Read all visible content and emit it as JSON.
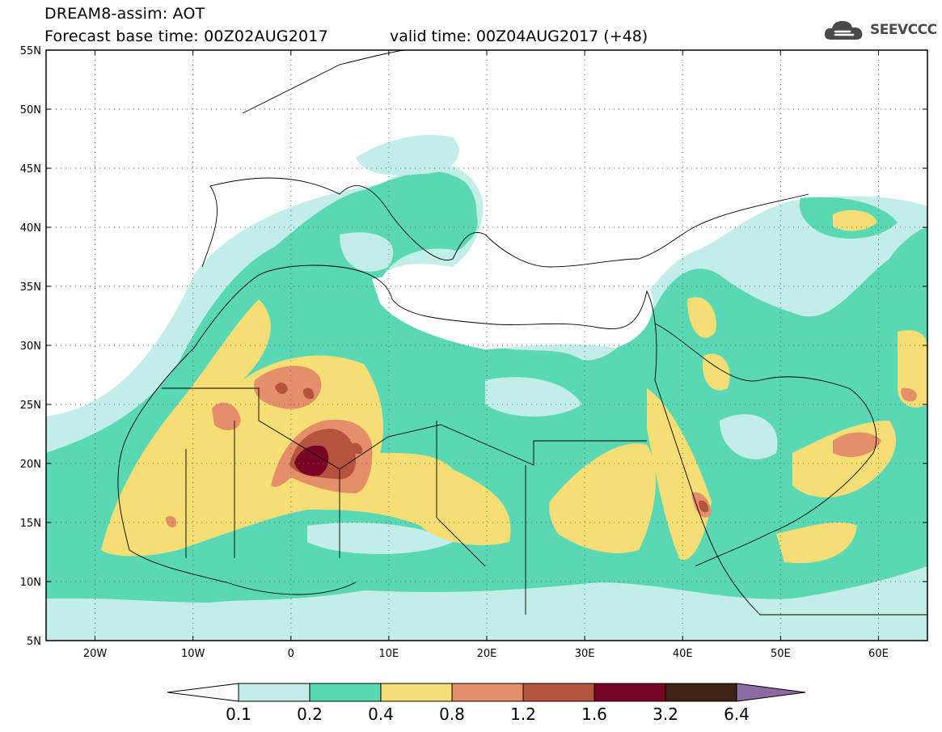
{
  "header": {
    "line1": "DREAM8-assim: AOT",
    "line2": "Forecast base time: 00Z02AUG2017",
    "valid": "valid time: 00Z04AUG2017 (+48)",
    "logo_text": "SEEVCCC"
  },
  "map": {
    "lon_range": [
      -25,
      65
    ],
    "lat_range": [
      5,
      55
    ],
    "lat_ticks": [
      {
        "value": 55,
        "label": "55N"
      },
      {
        "value": 50,
        "label": "50N"
      },
      {
        "value": 45,
        "label": "45N"
      },
      {
        "value": 40,
        "label": "40N"
      },
      {
        "value": 35,
        "label": "35N"
      },
      {
        "value": 30,
        "label": "30N"
      },
      {
        "value": 25,
        "label": "25N"
      },
      {
        "value": 20,
        "label": "20N"
      },
      {
        "value": 15,
        "label": "15N"
      },
      {
        "value": 10,
        "label": "10N"
      },
      {
        "value": 5,
        "label": "5N"
      }
    ],
    "lon_ticks": [
      {
        "value": -20,
        "label": "20W"
      },
      {
        "value": -10,
        "label": "10W"
      },
      {
        "value": 0,
        "label": "0"
      },
      {
        "value": 10,
        "label": "10E"
      },
      {
        "value": 20,
        "label": "20E"
      },
      {
        "value": 30,
        "label": "30E"
      },
      {
        "value": 40,
        "label": "40E"
      },
      {
        "value": 50,
        "label": "50E"
      },
      {
        "value": 60,
        "label": "60E"
      }
    ],
    "grid": true
  },
  "colorbar": {
    "labels": [
      "0.1",
      "0.2",
      "0.4",
      "0.8",
      "1.2",
      "1.6",
      "3.2",
      "6.4"
    ],
    "colors": [
      "#c3ede8",
      "#5ad8b5",
      "#f5df75",
      "#e58e6a",
      "#b5533f",
      "#7a0425",
      "#3d2414",
      "#8e6aa4"
    ],
    "under_color": "#ffffff"
  },
  "palette": {
    "c01": "#c3ede8",
    "c02": "#5ad8b5",
    "c04": "#f5df75",
    "c08": "#e58e6a",
    "c12": "#b5533f",
    "c16": "#7a0425",
    "c32": "#3d2414"
  }
}
